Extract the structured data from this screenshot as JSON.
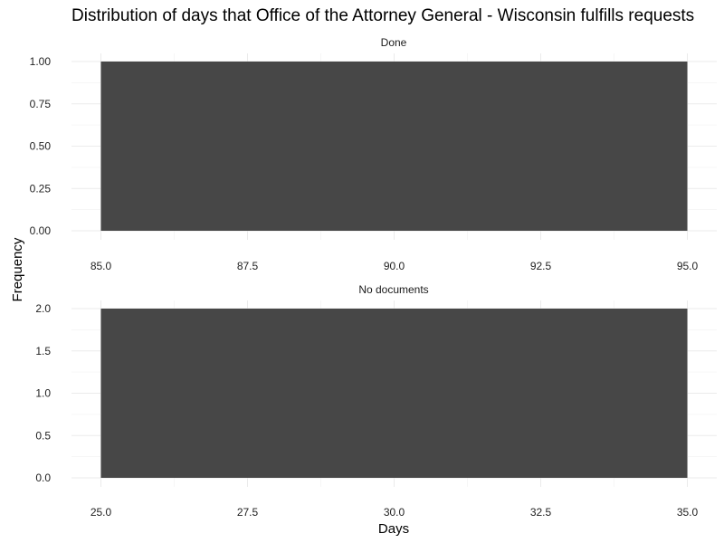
{
  "chart_data": {
    "type": "bar",
    "title": "Distribution of days that Office of the Attorney General - Wisconsin fulfills requests",
    "xlabel": "Days",
    "ylabel": "Frequency",
    "bar_color": "#474747",
    "grid": true,
    "panels": [
      {
        "strip": "Done",
        "bars": [
          {
            "x_start": 85,
            "x_end": 95,
            "count": 1
          }
        ],
        "xlim": [
          85,
          95
        ],
        "ylim": [
          0,
          1
        ],
        "x_ticks": [
          "85.0",
          "87.5",
          "90.0",
          "92.5",
          "95.0"
        ],
        "y_ticks": [
          "0.00",
          "0.25",
          "0.50",
          "0.75",
          "1.00"
        ]
      },
      {
        "strip": "No documents",
        "bars": [
          {
            "x_start": 25,
            "x_end": 35,
            "count": 2
          }
        ],
        "xlim": [
          25,
          35
        ],
        "ylim": [
          0,
          2
        ],
        "x_ticks": [
          "25.0",
          "27.5",
          "30.0",
          "32.5",
          "35.0"
        ],
        "y_ticks": [
          "0.0",
          "0.5",
          "1.0",
          "1.5",
          "2.0"
        ]
      }
    ]
  }
}
